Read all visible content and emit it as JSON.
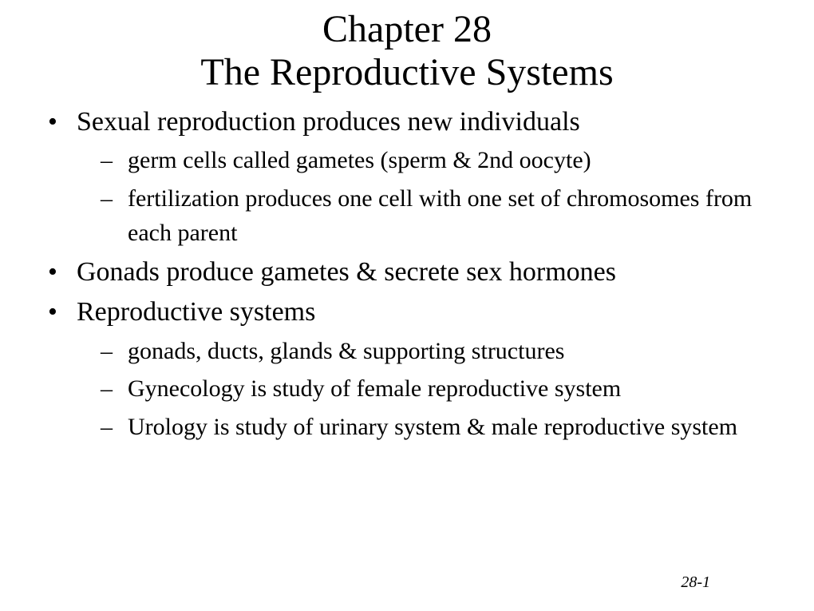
{
  "title": {
    "line1": "Chapter 28",
    "line2": "The Reproductive Systems"
  },
  "bullets": [
    {
      "text": "Sexual reproduction produces new individuals",
      "sub": [
        "germ cells called gametes (sperm & 2nd oocyte)",
        "fertilization produces one cell with one set of chromosomes from each parent"
      ]
    },
    {
      "text": "Gonads produce gametes & secrete sex hormones",
      "sub": []
    },
    {
      "text": "Reproductive systems",
      "sub": [
        "gonads, ducts, glands & supporting structures",
        "Gynecology is study of female reproductive system",
        "Urology is study of urinary system & male reproductive system"
      ]
    }
  ],
  "page_number": "28-1",
  "style": {
    "background_color": "#ffffff",
    "text_color": "#000000",
    "font_family": "Times New Roman",
    "title_fontsize": 48,
    "level1_fontsize": 34,
    "level2_fontsize": 30,
    "page_num_fontsize": 20
  }
}
